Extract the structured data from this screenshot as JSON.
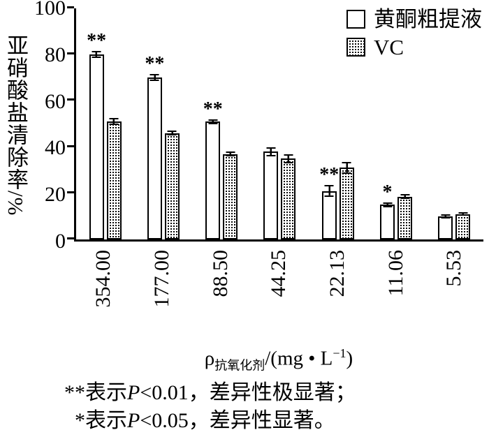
{
  "figure": {
    "background": "#ffffff",
    "ink": "#000000"
  },
  "legend": {
    "items": [
      {
        "label": "黄酮粗提液",
        "swatch": "open"
      },
      {
        "label": "VC",
        "swatch": "dotted"
      }
    ]
  },
  "y_axis": {
    "label": "亚硝酸盐清除率/%",
    "ticks": [
      0,
      20,
      40,
      60,
      80,
      100
    ]
  },
  "x_axis": {
    "rho": "ρ",
    "sub": "抗氧化剂",
    "unit_pre": "/(mg • L",
    "sup": "−1",
    "unit_post": ")"
  },
  "footnotes": [
    {
      "marker": "**",
      "before": "表示",
      "p": "P",
      "after": "<0.01，差异性极显著；"
    },
    {
      "marker": "*",
      "before": "表示",
      "p": "P",
      "after": "<0.05，差异性显著。"
    }
  ],
  "chart_data": {
    "type": "bar",
    "title": "",
    "xlabel": "ρ抗氧化剂/(mg•L−1)",
    "ylabel": "亚硝酸盐清除率/%",
    "ylim": [
      0,
      100
    ],
    "grid": false,
    "legend_position": "top-right",
    "categories": [
      "354.00",
      "177.00",
      "88.50",
      "44.25",
      "22.13",
      "11.06",
      "5.53"
    ],
    "series": [
      {
        "name": "黄酮粗提液",
        "values": [
          80,
          70,
          51,
          38,
          21,
          15,
          10
        ],
        "errors": [
          1.5,
          1.5,
          1,
          2,
          2.5,
          1,
          0.8
        ],
        "significance": [
          "**",
          "**",
          "**",
          "",
          "**",
          "*",
          ""
        ]
      },
      {
        "name": "VC",
        "values": [
          51,
          46,
          37,
          35,
          31,
          18.5,
          11
        ],
        "errors": [
          1.5,
          1,
          1,
          2,
          2.5,
          1,
          0.8
        ],
        "significance": [
          "",
          "",
          "",
          "",
          "",
          "",
          ""
        ]
      }
    ]
  }
}
